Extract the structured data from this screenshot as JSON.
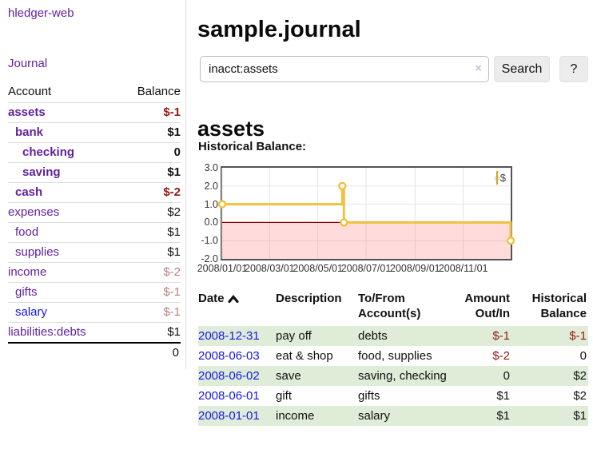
{
  "sidebar": {
    "brand": "hledger-web",
    "nav": {
      "journal_label": "Journal"
    },
    "accounts_table": {
      "headers": {
        "account": "Account",
        "balance": "Balance"
      },
      "rows": [
        {
          "name": "assets",
          "indent": 0,
          "bold": true,
          "link_color": "purple",
          "balance": "$-1",
          "balance_class": "neg"
        },
        {
          "name": "bank",
          "indent": 1,
          "bold": true,
          "link_color": "purple",
          "balance": "$1",
          "balance_class": ""
        },
        {
          "name": "checking",
          "indent": 2,
          "bold": true,
          "link_color": "purple",
          "balance": "0",
          "balance_class": ""
        },
        {
          "name": "saving",
          "indent": 2,
          "bold": true,
          "link_color": "purple",
          "balance": "$1",
          "balance_class": ""
        },
        {
          "name": "cash",
          "indent": 1,
          "bold": true,
          "link_color": "purple",
          "balance": "$-2",
          "balance_class": "neg"
        },
        {
          "name": "expenses",
          "indent": 0,
          "bold": false,
          "link_color": "purple",
          "balance": "$2",
          "balance_class": ""
        },
        {
          "name": "food",
          "indent": 1,
          "bold": false,
          "link_color": "purple",
          "balance": "$1",
          "balance_class": ""
        },
        {
          "name": "supplies",
          "indent": 1,
          "bold": false,
          "link_color": "purple",
          "balance": "$1",
          "balance_class": ""
        },
        {
          "name": "income",
          "indent": 0,
          "bold": false,
          "link_color": "purple",
          "balance": "$-2",
          "balance_class": "neg-light"
        },
        {
          "name": "gifts",
          "indent": 1,
          "bold": false,
          "link_color": "purple",
          "balance": "$-1",
          "balance_class": "neg-light"
        },
        {
          "name": "salary",
          "indent": 1,
          "bold": false,
          "link_color": "blue",
          "balance": "$-1",
          "balance_class": "neg-light"
        },
        {
          "name": "liabilities:debts",
          "indent": 0,
          "bold": false,
          "link_color": "purple",
          "balance": "$1",
          "balance_class": ""
        }
      ],
      "total": "0"
    }
  },
  "header": {
    "title": "sample.journal"
  },
  "search": {
    "value": "inacct:assets",
    "clear_icon": "×",
    "search_label": "Search",
    "help_label": "?"
  },
  "content": {
    "heading": "assets",
    "chart_label": "Historical Balance:"
  },
  "chart_data": {
    "type": "line",
    "title": "Historical Balance",
    "step": true,
    "series": [
      {
        "name": "$",
        "points": [
          [
            "2008-01-01",
            1
          ],
          [
            "2008-06-01",
            2
          ],
          [
            "2008-06-03",
            0
          ],
          [
            "2008-12-31",
            -1
          ]
        ]
      }
    ],
    "ylim": [
      -2.0,
      3.0
    ],
    "yticks": [
      3.0,
      2.0,
      1.0,
      0.0,
      -1.0,
      -2.0
    ],
    "xticks": [
      "2008/01/01",
      "2008/03/01",
      "2008/05/01",
      "2008/07/01",
      "2008/09/01",
      "2008/11/01"
    ],
    "negative_region_below": 0,
    "grid": true,
    "legend": [
      "$"
    ],
    "legend_position": "top-right"
  },
  "register_table": {
    "headers": {
      "date": "Date",
      "sort_icon": "chevron-up",
      "description": "Description",
      "accounts": "To/From Account(s)",
      "amount": "Amount Out/In",
      "balance": "Historical Balance"
    },
    "rows": [
      {
        "date": "2008-12-31",
        "description": "pay off",
        "accounts": "debts",
        "amount": "$-1",
        "amount_negative": true,
        "balance": "$-1",
        "balance_negative": true
      },
      {
        "date": "2008-06-03",
        "description": "eat & shop",
        "accounts": "food, supplies",
        "amount": "$-2",
        "amount_negative": true,
        "balance": "0",
        "balance_negative": false
      },
      {
        "date": "2008-06-02",
        "description": "save",
        "accounts": "saving, checking",
        "amount": "0",
        "amount_negative": false,
        "balance": "$2",
        "balance_negative": false
      },
      {
        "date": "2008-06-01",
        "description": "gift",
        "accounts": "gifts",
        "amount": "$1",
        "amount_negative": false,
        "balance": "$2",
        "balance_negative": false
      },
      {
        "date": "2008-01-01",
        "description": "income",
        "accounts": "salary",
        "amount": "$1",
        "amount_negative": false,
        "balance": "$1",
        "balance_negative": false
      }
    ]
  },
  "colors": {
    "link_purple": "#61219e",
    "link_blue": "#1515ee",
    "negative_red": "#971616",
    "negative_red_light": "#b98181",
    "row_green": "#dfecd8",
    "chart_line": "#edc240",
    "chart_marker_fill": "#ffffff",
    "chart_negative_region": "rgba(255,110,110,0.25)",
    "chart_zero_line": "#8b0000",
    "chart_grid": "#e5e5e5",
    "chart_border": "#545454"
  }
}
